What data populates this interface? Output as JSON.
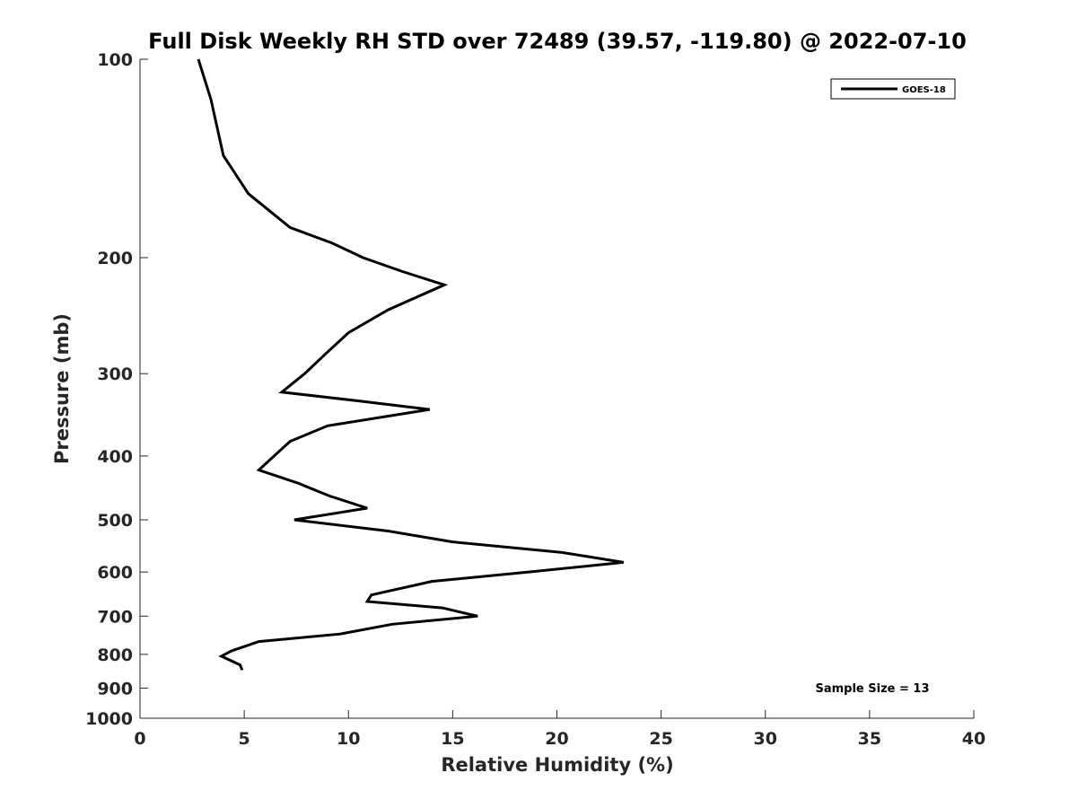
{
  "chart_data": {
    "type": "line",
    "title": "Full Disk Weekly RH STD over 72489 (39.57, -119.80) @ 2022-07-10",
    "xlabel": "Relative Humidity (%)",
    "ylabel": "Pressure (mb)",
    "xlim": [
      0,
      40
    ],
    "ylim": [
      100,
      1000
    ],
    "y_scale": "log",
    "y_inverted": true,
    "grid": false,
    "legend_position": "top-right",
    "x_ticks": [
      "0",
      "5",
      "10",
      "15",
      "20",
      "25",
      "30",
      "35",
      "40"
    ],
    "y_ticks": [
      "100",
      "200",
      "300",
      "400",
      "500",
      "600",
      "700",
      "800",
      "900",
      "1000"
    ],
    "series": [
      {
        "name": "GOES-18",
        "color": "#000000",
        "x": [
          2.8,
          3.4,
          4.0,
          5.2,
          7.2,
          9.2,
          10.7,
          12.6,
          14.6,
          11.9,
          10.0,
          8.9,
          7.9,
          6.8,
          10.5,
          13.9,
          9.0,
          7.2,
          5.7,
          7.6,
          9.1,
          10.9,
          7.4,
          11.9,
          15.0,
          20.2,
          23.2,
          18.6,
          14.0,
          11.1,
          10.9,
          14.5,
          16.2,
          12.1,
          9.6,
          5.7,
          4.4,
          3.9,
          4.8,
          4.9
        ],
        "y": [
          100,
          115,
          140,
          160,
          180,
          190,
          200,
          210,
          220,
          240,
          260,
          280,
          300,
          320,
          330,
          340,
          360,
          380,
          420,
          440,
          460,
          480,
          500,
          520,
          540,
          560,
          580,
          600,
          620,
          650,
          665,
          680,
          700,
          720,
          745,
          765,
          790,
          805,
          830,
          845
        ]
      }
    ],
    "annotations": [
      "Sample Size = 13"
    ]
  }
}
